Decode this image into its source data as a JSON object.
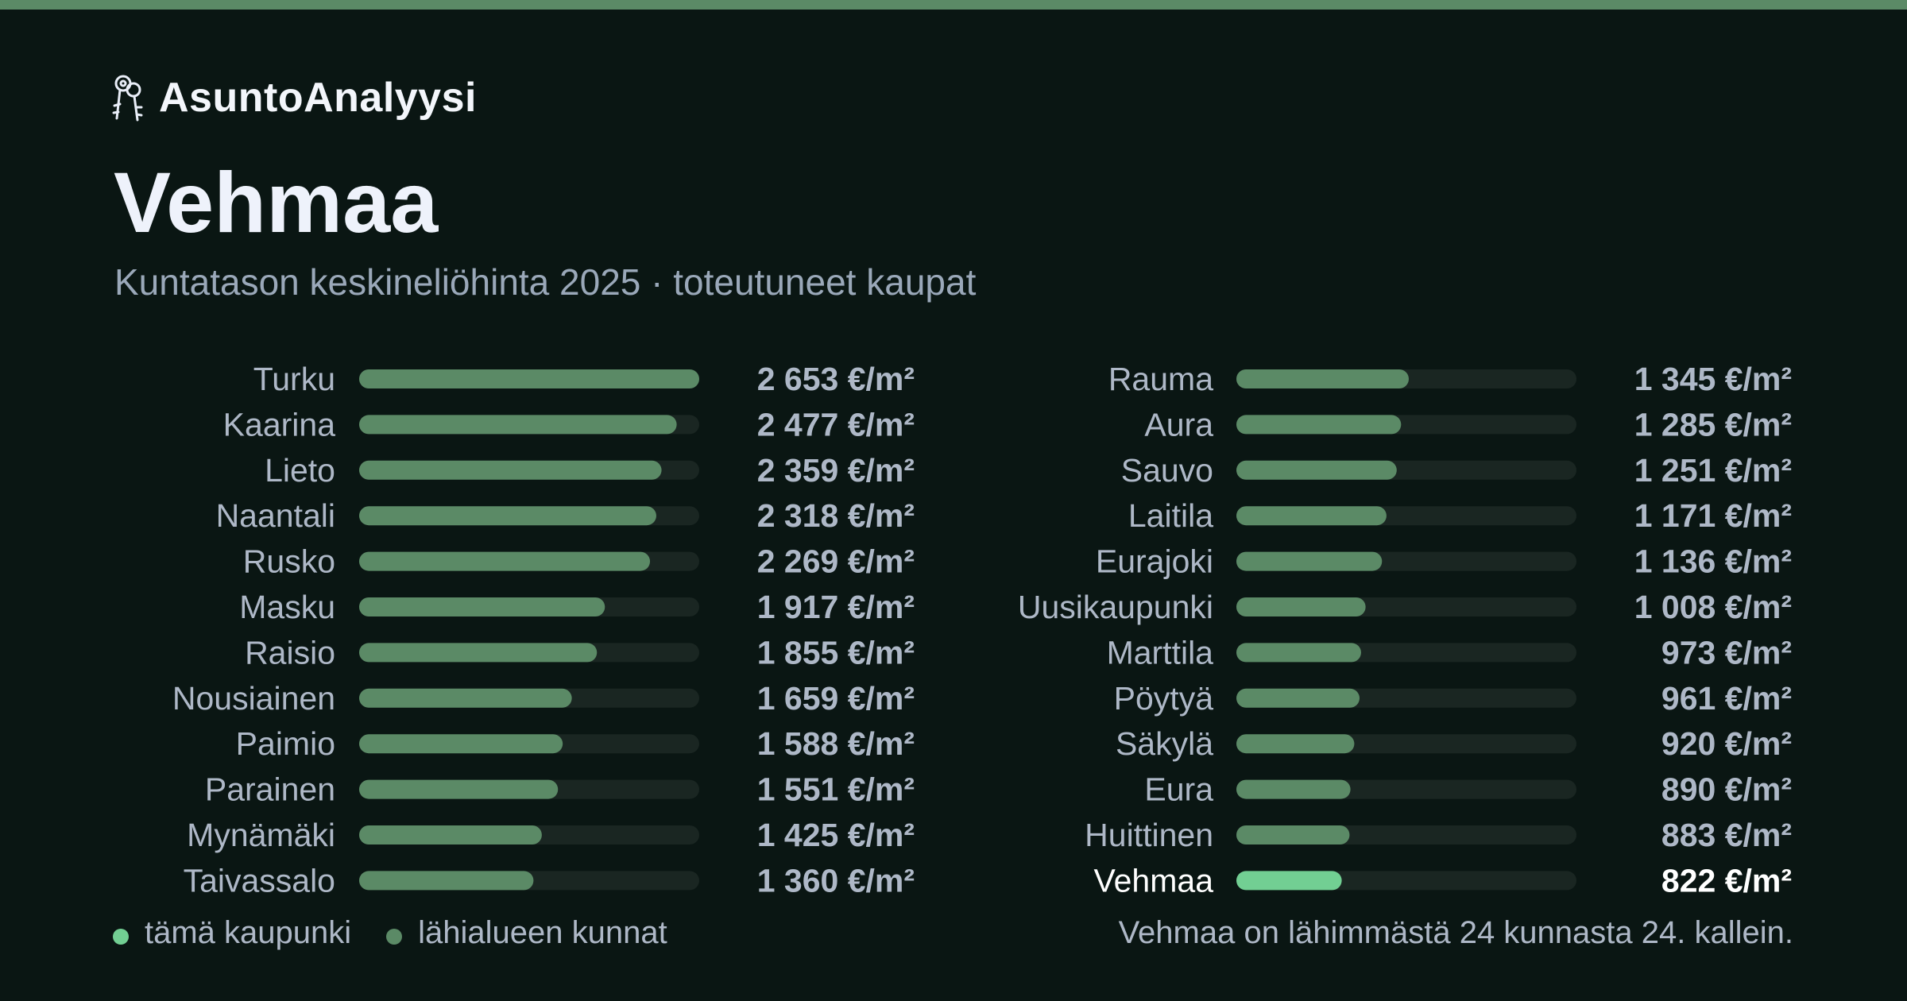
{
  "brand": {
    "name": "AsuntoAnalyysi",
    "icon": "keys-icon"
  },
  "title": "Vehmaa",
  "subtitle": "Kuntatason keskineliöhinta 2025 · toteutuneet kaupat",
  "colors": {
    "background": "#0a1613",
    "accent": "#5b8a66",
    "bar": "#5b8a66",
    "bar_highlight": "#72cf93",
    "track": "#1a2622",
    "label": "#aeb8c7",
    "highlight_text": "#ffffff"
  },
  "legend": {
    "this_city": "tämä kaupunki",
    "nearby": "lähialueen kunnat"
  },
  "footnote": "Vehmaa on lähimmästä 24 kunnasta 24. kallein.",
  "chart_data": {
    "type": "bar",
    "orientation": "horizontal",
    "unit": "€/m²",
    "highlight": "Vehmaa",
    "xlim": [
      0,
      2653
    ],
    "categories": [
      "Turku",
      "Kaarina",
      "Lieto",
      "Naantali",
      "Rusko",
      "Masku",
      "Raisio",
      "Nousiainen",
      "Paimio",
      "Parainen",
      "Mynämäki",
      "Taivassalo",
      "Rauma",
      "Aura",
      "Sauvo",
      "Laitila",
      "Eurajoki",
      "Uusikaupunki",
      "Marttila",
      "Pöytyä",
      "Säkylä",
      "Eura",
      "Huittinen",
      "Vehmaa"
    ],
    "values": [
      2653,
      2477,
      2359,
      2318,
      2269,
      1917,
      1855,
      1659,
      1588,
      1551,
      1425,
      1360,
      1345,
      1285,
      1251,
      1171,
      1136,
      1008,
      973,
      961,
      920,
      890,
      883,
      822
    ],
    "value_labels": [
      "2 653 €/m²",
      "2 477 €/m²",
      "2 359 €/m²",
      "2 318 €/m²",
      "2 269 €/m²",
      "1 917 €/m²",
      "1 855 €/m²",
      "1 659 €/m²",
      "1 588 €/m²",
      "1 551 €/m²",
      "1 425 €/m²",
      "1 360 €/m²",
      "1 345 €/m²",
      "1 285 €/m²",
      "1 251 €/m²",
      "1 171 €/m²",
      "1 136 €/m²",
      "1 008 €/m²",
      "973 €/m²",
      "961 €/m²",
      "920 €/m²",
      "890 €/m²",
      "883 €/m²",
      "822 €/m²"
    ],
    "grid": false,
    "legend_position": "bottom-left"
  }
}
